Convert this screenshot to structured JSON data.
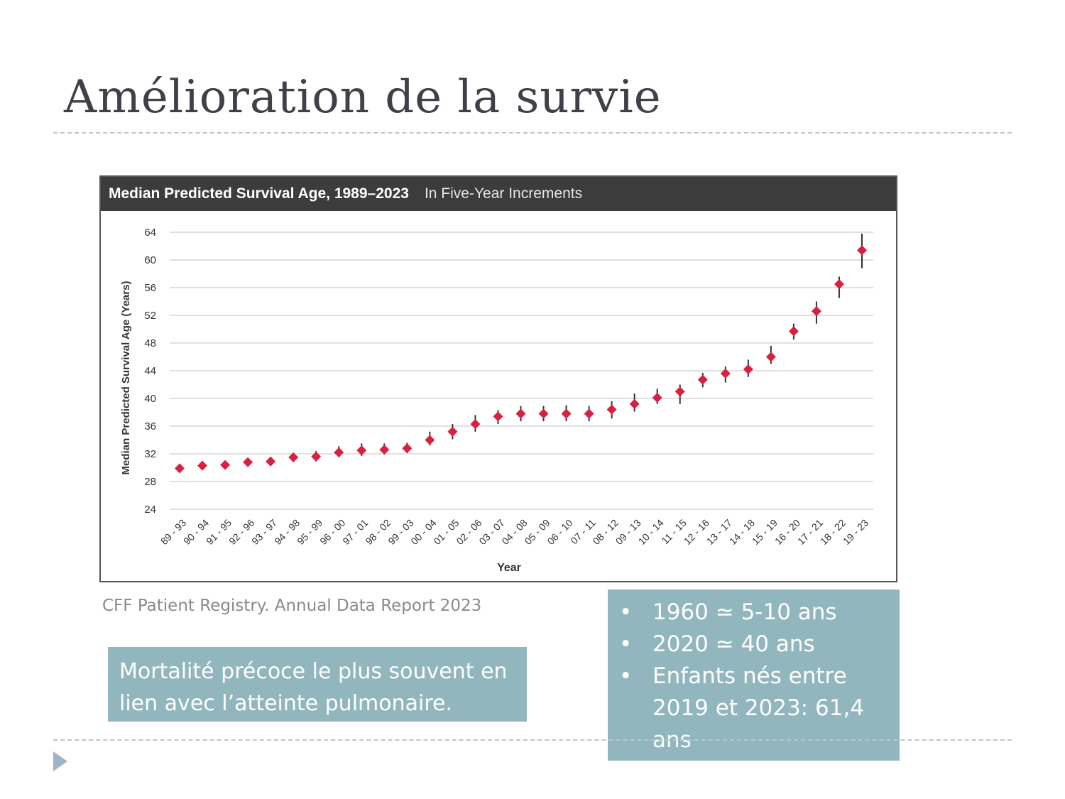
{
  "slide": {
    "title": "Amélioration de la survie",
    "source": "CFF Patient Registry.  Annual Data Report 2023",
    "note": "Mortalité précoce le plus souvent en lien avec l’atteinte pulmonaire.",
    "bullets": [
      "1960  ≃ 5-10 ans",
      "2020 ≃ 40 ans",
      "Enfants nés entre 2019 et 2023:  61,4 ans"
    ]
  },
  "colors": {
    "marker": "#d9213f",
    "error_bar": "#333333",
    "grid": "#d6d6d6",
    "header_bg": "#3c3c3c",
    "box_bg": "#91b6be"
  },
  "chart_data": {
    "type": "scatter",
    "title": "Median Predicted Survival Age, 1989–2023",
    "subtitle": "In Five-Year Increments",
    "xlabel": "Year",
    "ylabel": "Median Predicted Survival Age  (Years)",
    "ylim": [
      24,
      64
    ],
    "yticks": [
      64,
      60,
      56,
      52,
      48,
      44,
      40,
      36,
      32,
      28,
      24
    ],
    "grid": true,
    "categories": [
      "89 - 93",
      "90 - 94",
      "91 - 95",
      "92 - 96",
      "93 - 97",
      "94 - 98",
      "95 - 99",
      "96 - 00",
      "97 - 01",
      "98 - 02",
      "99 - 03",
      "00 - 04",
      "01 - 05",
      "02 - 06",
      "03 - 07",
      "04 - 08",
      "05 - 09",
      "06 - 10",
      "07 - 11",
      "08 - 12",
      "09 - 13",
      "10 - 14",
      "11 - 15",
      "12 - 16",
      "13 - 17",
      "14 - 18",
      "15 - 19",
      "16 - 20",
      "17 - 21",
      "18 - 22",
      "19 - 23"
    ],
    "values": [
      29.9,
      30.3,
      30.4,
      30.8,
      30.9,
      31.5,
      31.6,
      32.2,
      32.5,
      32.6,
      32.8,
      34.0,
      35.2,
      36.3,
      37.4,
      37.8,
      37.8,
      37.8,
      37.8,
      38.4,
      39.2,
      40.1,
      41.0,
      42.7,
      43.6,
      44.2,
      46.0,
      49.7,
      52.6,
      56.5,
      61.4
    ],
    "ci_low": [
      29.4,
      29.7,
      29.8,
      30.2,
      30.3,
      30.8,
      30.9,
      31.5,
      31.7,
      31.9,
      32.1,
      33.2,
      34.1,
      35.2,
      36.3,
      36.7,
      36.7,
      36.7,
      36.7,
      37.1,
      38.1,
      39.2,
      39.2,
      41.6,
      42.3,
      43.1,
      45.0,
      48.5,
      50.8,
      54.5,
      58.8
    ],
    "ci_high": [
      30.5,
      30.9,
      31.0,
      31.4,
      31.5,
      32.1,
      32.4,
      33.1,
      33.5,
      33.5,
      33.6,
      35.2,
      36.3,
      37.6,
      38.3,
      38.9,
      38.9,
      39.0,
      38.9,
      39.6,
      40.7,
      41.4,
      42.0,
      43.7,
      44.6,
      45.6,
      47.6,
      50.8,
      54.0,
      57.6,
      63.8
    ]
  }
}
